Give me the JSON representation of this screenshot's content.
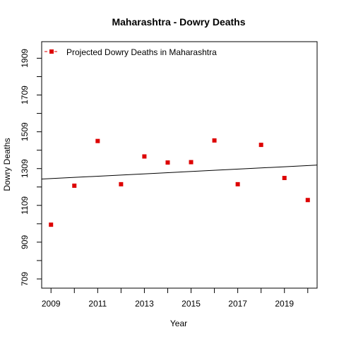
{
  "chart_data": {
    "type": "scatter",
    "title": "Maharashtra  -  Dowry Deaths",
    "xlabel": "Year",
    "ylabel": "Dowry Deaths",
    "xlim": [
      2008.6,
      2020.4
    ],
    "ylim": [
      659,
      1999
    ],
    "x_ticks": [
      2009,
      2010,
      2011,
      2012,
      2013,
      2014,
      2015,
      2016,
      2017,
      2018,
      2019,
      2020
    ],
    "x_tick_labels": [
      "2009",
      "",
      "2011",
      "",
      "2013",
      "",
      "2015",
      "",
      "2017",
      "",
      "2019",
      ""
    ],
    "y_ticks": [
      709,
      809,
      909,
      1009,
      1109,
      1209,
      1309,
      1409,
      1509,
      1609,
      1709,
      1809,
      1909
    ],
    "y_tick_labels": [
      "709",
      "",
      "909",
      "",
      "1109",
      "",
      "1309",
      "",
      "1509",
      "",
      "1709",
      "",
      "1909"
    ],
    "grid": false,
    "legend_position": "top-left",
    "series": [
      {
        "name": "Projected  Dowry Deaths  in  Maharashtra",
        "color": "#dd0000",
        "marker": "square",
        "x": [
          2009,
          2010,
          2011,
          2012,
          2013,
          2014,
          2015,
          2016,
          2017,
          2018,
          2019,
          2020
        ],
        "y": [
          1004,
          1216,
          1459,
          1224,
          1375,
          1342,
          1344,
          1462,
          1224,
          1438,
          1258,
          1138
        ]
      }
    ],
    "trend_line": {
      "color": "#000000",
      "x": [
        2008.6,
        2020.4
      ],
      "y": [
        1252,
        1328
      ]
    }
  }
}
